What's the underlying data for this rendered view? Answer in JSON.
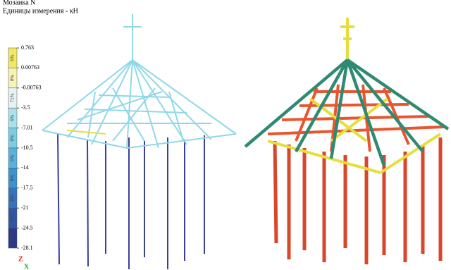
{
  "header": {
    "title": "Мозаика N",
    "units": "Единицы измерения - кН"
  },
  "legend": {
    "ticks": [
      0.763,
      0.00763,
      -0.00763,
      -3.5,
      -7.01,
      -10.5,
      -14,
      -17.5,
      -21,
      -24.5,
      -28.1
    ],
    "segments": [
      {
        "label": "6%",
        "color": "#f2e863"
      },
      {
        "label": "0%",
        "color": "#f5f3b6"
      },
      {
        "label": "71%",
        "color": "#e6f3f2"
      },
      {
        "label": "6%",
        "color": "#a9e2ea"
      },
      {
        "label": "0%",
        "color": "#7ccde4"
      },
      {
        "label": "6%",
        "color": "#5ab2dc"
      },
      {
        "label": "0%",
        "color": "#3d93cf"
      },
      {
        "label": "0%",
        "color": "#3574bb"
      },
      {
        "label": "0%",
        "color": "#2f56a4"
      },
      {
        "label": "1%",
        "color": "#2a3a8a"
      }
    ]
  },
  "axes": {
    "z": "Z",
    "x": "X"
  }
}
